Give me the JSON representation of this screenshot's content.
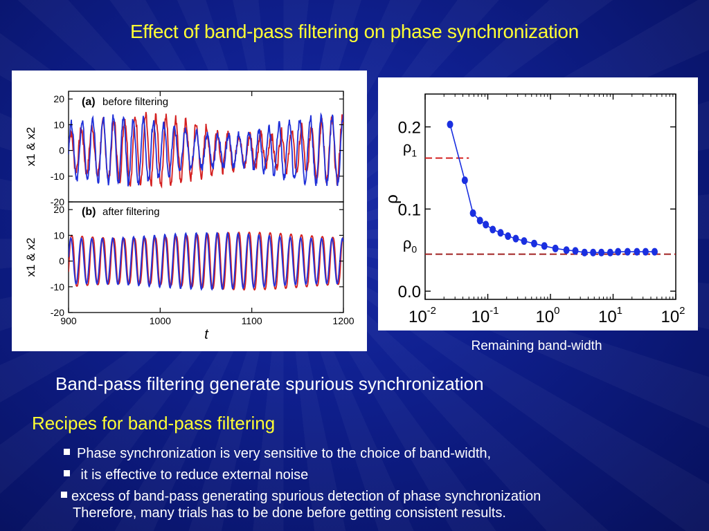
{
  "title": "Effect of band-pass filtering on phase synchronization",
  "caption": "Remaining band-width",
  "statement": "Band-pass filtering generate spurious synchronization",
  "recipes": {
    "title": "Recipes for band-pass filtering",
    "items": [
      "Phase synchronization is very sensitive to the choice of band-width,",
      " it is effective to reduce external noise",
      "excess of band-pass generating spurious detection of phase synchronization"
    ],
    "conclusion": "Therefore,  many trials has to be done before getting consistent results."
  },
  "colors": {
    "title": "#ffff33",
    "series1": "#d42020",
    "series2": "#2030d8",
    "rho": "#1a2fe0"
  },
  "chart_data": [
    {
      "type": "line",
      "panel_label": "(a)",
      "subtitle": "before filtering",
      "ylabel": "x1 & x2",
      "xlabel": "t",
      "xlim": [
        900,
        1200
      ],
      "ylim": [
        -20,
        23
      ],
      "yticks": [
        "20",
        "10",
        "0",
        "-10",
        "-20"
      ],
      "xticks": [
        "900",
        "1000",
        "1100",
        "1200"
      ],
      "series": [
        {
          "label": "x1",
          "amplitude": 12,
          "period": 11.4,
          "noise": 4
        },
        {
          "label": "x2",
          "amplitude": 12,
          "period": 11.4,
          "noise": 3
        }
      ]
    },
    {
      "type": "line",
      "panel_label": "(b)",
      "subtitle": "after filtering",
      "ylabel": "x1 & x2",
      "xlabel": "t",
      "xlim": [
        900,
        1200
      ],
      "ylim": [
        -20,
        23
      ],
      "yticks": [
        "20",
        "10",
        "0",
        "-10",
        "-20"
      ],
      "xticks": [
        "900",
        "1000",
        "1100",
        "1200"
      ],
      "series": [
        {
          "label": "x1",
          "amplitude": 12,
          "period": 11.4,
          "noise": 0
        },
        {
          "label": "x2",
          "amplitude": 11,
          "period": 11.4,
          "noise": 0
        }
      ]
    },
    {
      "type": "scatter",
      "ylabel": "ρ",
      "xscale": "log",
      "xlim": [
        0.01,
        100
      ],
      "ylim": [
        -0.01,
        0.24
      ],
      "yticks": [
        "0.2",
        "0.1",
        "0.0"
      ],
      "xticks": [
        {
          "base": "10",
          "exp": "-2"
        },
        {
          "base": "10",
          "exp": "-1"
        },
        {
          "base": "10",
          "exp": "0"
        },
        {
          "base": "10",
          "exp": "1"
        },
        {
          "base": "10",
          "exp": "2"
        }
      ],
      "reference_lines": [
        {
          "label": "ρ",
          "sub": "1",
          "y": 0.162,
          "x_to": 0.05,
          "color": "#d42020"
        },
        {
          "label": "ρ",
          "sub": "0",
          "y": 0.045,
          "x_to": 100,
          "color": "#a02020"
        }
      ],
      "x": [
        0.025,
        0.043,
        0.058,
        0.075,
        0.093,
        0.12,
        0.16,
        0.21,
        0.28,
        0.38,
        0.55,
        0.8,
        1.2,
        1.8,
        2.5,
        3.5,
        4.8,
        6.5,
        9,
        12,
        17,
        24,
        33,
        46
      ],
      "y": [
        0.203,
        0.135,
        0.095,
        0.086,
        0.081,
        0.075,
        0.071,
        0.067,
        0.064,
        0.061,
        0.058,
        0.055,
        0.052,
        0.05,
        0.049,
        0.047,
        0.047,
        0.047,
        0.047,
        0.048,
        0.048,
        0.048,
        0.048,
        0.048
      ]
    }
  ]
}
